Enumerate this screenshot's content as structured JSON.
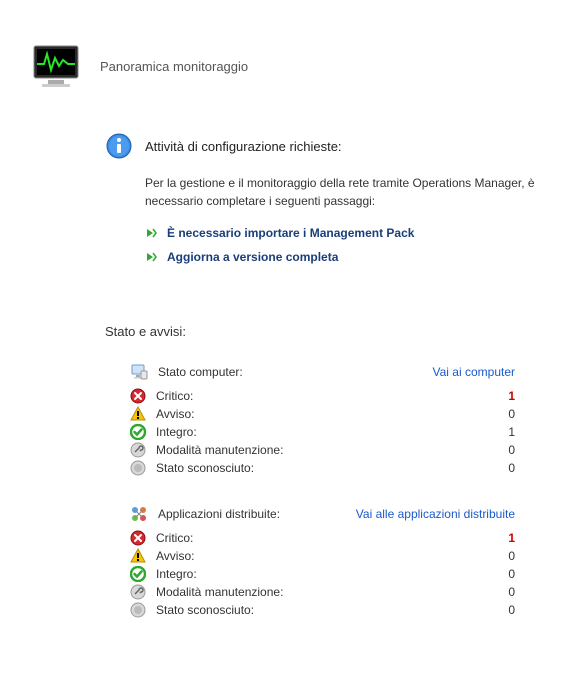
{
  "header": {
    "title": "Panoramica monitoraggio"
  },
  "config": {
    "required_label": "Attività di configurazione richieste:",
    "description": "Per la gestione e il monitoraggio della rete tramite Operations Manager, è necessario completare i seguenti passaggi:",
    "actions": [
      {
        "label": "È necessario importare i Management Pack"
      },
      {
        "label": "Aggiorna a versione completa"
      }
    ]
  },
  "status": {
    "header": "Stato e avvisi:",
    "groups": [
      {
        "icon": "computer",
        "title": "Stato computer:",
        "link": "Vai ai computer",
        "rows": [
          {
            "icon": "critical",
            "label": "Critico:",
            "value": "1",
            "red": true
          },
          {
            "icon": "warning",
            "label": "Avviso:",
            "value": "0"
          },
          {
            "icon": "healthy",
            "label": "Integro:",
            "value": "1"
          },
          {
            "icon": "maintenance",
            "label": "Modalità manutenzione:",
            "value": "0"
          },
          {
            "icon": "unknown",
            "label": "Stato sconosciuto:",
            "value": "0"
          }
        ]
      },
      {
        "icon": "apps",
        "title": "Applicazioni distribuite:",
        "link": "Vai alle applicazioni distribuite",
        "rows": [
          {
            "icon": "critical",
            "label": "Critico:",
            "value": "1",
            "red": true
          },
          {
            "icon": "warning",
            "label": "Avviso:",
            "value": "0"
          },
          {
            "icon": "healthy",
            "label": "Integro:",
            "value": "0"
          },
          {
            "icon": "maintenance",
            "label": "Modalità manutenzione:",
            "value": "0"
          },
          {
            "icon": "unknown",
            "label": "Stato sconosciuto:",
            "value": "0"
          }
        ]
      }
    ]
  },
  "colors": {
    "link": "#1a5acc",
    "action_link": "#1a3e7a",
    "critical": "#c00",
    "healthy_green": "#2fa82f",
    "warning_yellow": "#f5c60c",
    "monitor_green": "#29e629"
  }
}
